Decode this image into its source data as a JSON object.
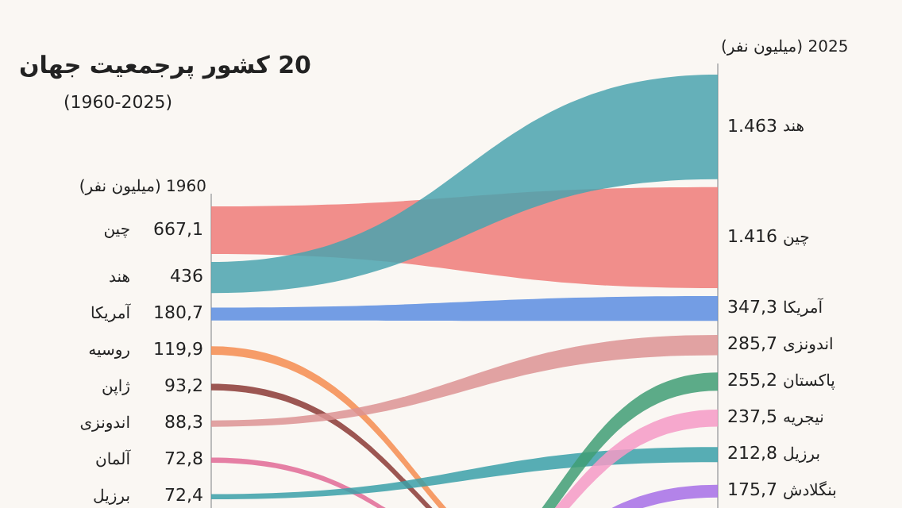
{
  "chart_data": {
    "type": "other",
    "title": "20 کشور پرجمعیت جهان",
    "subtitle": "(1960-2025)",
    "categories": [
      "چین",
      "هند",
      "آمریکا",
      "روسیه",
      "ژاپن",
      "اندونزی",
      "آلمان",
      "برزیل",
      "پاکستان",
      "نیجریه",
      "بنگلادش"
    ],
    "colors": [
      "#ee7b78",
      "#4aa3ae",
      "#5b8de0",
      "#f48c4f",
      "#8b3a35",
      "#dc9393",
      "#e06a95",
      "#3aa0a8",
      "#3f9e74",
      "#f49ac5",
      "#a66ee6"
    ],
    "series": [
      {
        "name": "1960 (میلیون نفر)",
        "values": [
          667.1,
          436,
          180.7,
          119.9,
          93.2,
          88.3,
          72.8,
          72.4,
          null,
          null,
          null
        ],
        "value_labels": [
          "667,1",
          "436",
          "180,7",
          "119,9",
          "93,2",
          "88,3",
          "72,8",
          "72,4",
          null,
          null,
          null
        ]
      },
      {
        "name": "2025 (میلیون نفر)",
        "values": [
          1416,
          1463,
          347.3,
          null,
          null,
          285.7,
          null,
          212.8,
          255.2,
          237.5,
          175.7
        ],
        "value_labels": [
          "1.416",
          "1.463",
          "347,3",
          null,
          null,
          "285,7",
          null,
          "212,8",
          "255,2",
          "237,5",
          "175,7"
        ]
      }
    ]
  }
}
